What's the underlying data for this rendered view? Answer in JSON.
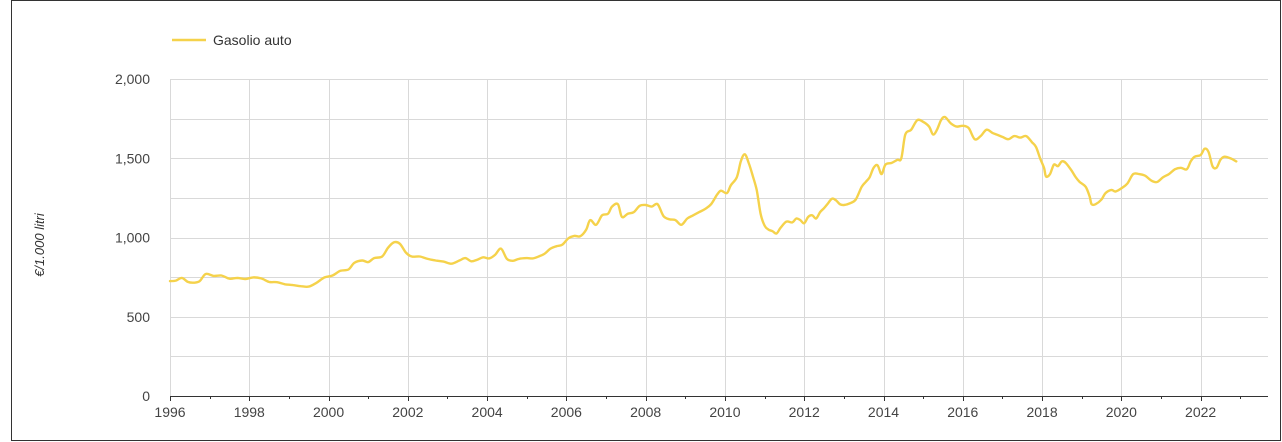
{
  "chart_data": {
    "type": "line",
    "title": "",
    "xlabel": "",
    "ylabel": "€/1.000 litri",
    "xlim": [
      1996,
      2023.7
    ],
    "ylim": [
      0,
      2000
    ],
    "y_ticks": [
      0,
      500,
      1000,
      1500,
      2000
    ],
    "y_tick_labels": [
      "0",
      "500",
      "1,000",
      "1,500",
      "2,000"
    ],
    "x_ticks": [
      1996,
      1998,
      2000,
      2002,
      2004,
      2006,
      2008,
      2010,
      2012,
      2014,
      2016,
      2018,
      2020,
      2022
    ],
    "x_tick_labels": [
      "1996",
      "1998",
      "2000",
      "2002",
      "2004",
      "2006",
      "2008",
      "2010",
      "2012",
      "2014",
      "2016",
      "2018",
      "2020",
      "2022"
    ],
    "grid": true,
    "legend_position": "top-left",
    "series": [
      {
        "name": "Gasolio auto",
        "color": "#f5d24b",
        "points": [
          [
            1996.0,
            725
          ],
          [
            1996.15,
            728
          ],
          [
            1996.3,
            745
          ],
          [
            1996.45,
            720
          ],
          [
            1996.6,
            715
          ],
          [
            1996.75,
            725
          ],
          [
            1996.9,
            770
          ],
          [
            1997.1,
            758
          ],
          [
            1997.3,
            760
          ],
          [
            1997.5,
            740
          ],
          [
            1997.7,
            745
          ],
          [
            1997.9,
            738
          ],
          [
            1998.1,
            748
          ],
          [
            1998.3,
            742
          ],
          [
            1998.5,
            720
          ],
          [
            1998.7,
            718
          ],
          [
            1998.9,
            705
          ],
          [
            1999.1,
            700
          ],
          [
            1999.3,
            693
          ],
          [
            1999.5,
            690
          ],
          [
            1999.7,
            715
          ],
          [
            1999.9,
            748
          ],
          [
            2000.1,
            760
          ],
          [
            2000.3,
            790
          ],
          [
            2000.5,
            798
          ],
          [
            2000.65,
            840
          ],
          [
            2000.85,
            855
          ],
          [
            2001.0,
            845
          ],
          [
            2001.15,
            870
          ],
          [
            2001.35,
            880
          ],
          [
            2001.5,
            935
          ],
          [
            2001.65,
            970
          ],
          [
            2001.8,
            960
          ],
          [
            2001.95,
            905
          ],
          [
            2002.1,
            880
          ],
          [
            2002.3,
            880
          ],
          [
            2002.5,
            865
          ],
          [
            2002.7,
            855
          ],
          [
            2002.9,
            848
          ],
          [
            2003.1,
            835
          ],
          [
            2003.3,
            855
          ],
          [
            2003.45,
            870
          ],
          [
            2003.6,
            850
          ],
          [
            2003.75,
            860
          ],
          [
            2003.9,
            875
          ],
          [
            2004.05,
            868
          ],
          [
            2004.2,
            890
          ],
          [
            2004.35,
            930
          ],
          [
            2004.5,
            865
          ],
          [
            2004.65,
            853
          ],
          [
            2004.8,
            865
          ],
          [
            2005.0,
            870
          ],
          [
            2005.15,
            868
          ],
          [
            2005.3,
            880
          ],
          [
            2005.45,
            898
          ],
          [
            2005.6,
            930
          ],
          [
            2005.75,
            945
          ],
          [
            2005.9,
            955
          ],
          [
            2006.05,
            995
          ],
          [
            2006.2,
            1010
          ],
          [
            2006.35,
            1008
          ],
          [
            2006.5,
            1050
          ],
          [
            2006.6,
            1110
          ],
          [
            2006.75,
            1080
          ],
          [
            2006.9,
            1140
          ],
          [
            2007.05,
            1150
          ],
          [
            2007.15,
            1195
          ],
          [
            2007.3,
            1210
          ],
          [
            2007.4,
            1130
          ],
          [
            2007.55,
            1150
          ],
          [
            2007.7,
            1160
          ],
          [
            2007.85,
            1200
          ],
          [
            2008.0,
            1205
          ],
          [
            2008.15,
            1195
          ],
          [
            2008.3,
            1210
          ],
          [
            2008.45,
            1135
          ],
          [
            2008.6,
            1115
          ],
          [
            2008.75,
            1110
          ],
          [
            2008.9,
            1080
          ],
          [
            2009.05,
            1120
          ],
          [
            2009.2,
            1140
          ],
          [
            2009.35,
            1160
          ],
          [
            2009.5,
            1180
          ],
          [
            2009.65,
            1210
          ],
          [
            2009.8,
            1270
          ],
          [
            2009.9,
            1295
          ],
          [
            2010.05,
            1280
          ],
          [
            2010.15,
            1330
          ],
          [
            2010.3,
            1380
          ],
          [
            2010.4,
            1480
          ],
          [
            2010.5,
            1525
          ],
          [
            2010.6,
            1470
          ],
          [
            2010.7,
            1390
          ],
          [
            2010.8,
            1300
          ],
          [
            2010.9,
            1150
          ],
          [
            2011.0,
            1075
          ],
          [
            2011.1,
            1050
          ],
          [
            2011.2,
            1040
          ],
          [
            2011.3,
            1025
          ],
          [
            2011.4,
            1060
          ],
          [
            2011.55,
            1100
          ],
          [
            2011.7,
            1095
          ],
          [
            2011.8,
            1120
          ],
          [
            2011.9,
            1110
          ],
          [
            2012.0,
            1090
          ],
          [
            2012.1,
            1130
          ],
          [
            2012.2,
            1140
          ],
          [
            2012.3,
            1120
          ],
          [
            2012.4,
            1160
          ],
          [
            2012.5,
            1185
          ],
          [
            2012.6,
            1215
          ],
          [
            2012.7,
            1245
          ],
          [
            2012.8,
            1235
          ],
          [
            2012.9,
            1210
          ],
          [
            2013.0,
            1205
          ],
          [
            2013.15,
            1215
          ],
          [
            2013.3,
            1240
          ],
          [
            2013.45,
            1320
          ],
          [
            2013.55,
            1350
          ],
          [
            2013.65,
            1380
          ],
          [
            2013.75,
            1440
          ],
          [
            2013.85,
            1455
          ],
          [
            2013.95,
            1400
          ],
          [
            2014.05,
            1460
          ],
          [
            2014.2,
            1470
          ],
          [
            2014.35,
            1490
          ],
          [
            2014.45,
            1500
          ],
          [
            2014.55,
            1650
          ],
          [
            2014.7,
            1680
          ],
          [
            2014.85,
            1740
          ],
          [
            2015.0,
            1730
          ],
          [
            2015.15,
            1700
          ],
          [
            2015.25,
            1650
          ],
          [
            2015.35,
            1680
          ],
          [
            2015.45,
            1740
          ],
          [
            2015.55,
            1760
          ],
          [
            2015.7,
            1720
          ],
          [
            2015.85,
            1700
          ],
          [
            2016.0,
            1705
          ],
          [
            2016.15,
            1690
          ],
          [
            2016.3,
            1620
          ],
          [
            2016.45,
            1640
          ],
          [
            2016.6,
            1680
          ],
          [
            2016.75,
            1660
          ],
          [
            2016.85,
            1650
          ],
          [
            2017.0,
            1635
          ],
          [
            2017.15,
            1620
          ],
          [
            2017.3,
            1640
          ],
          [
            2017.45,
            1630
          ],
          [
            2017.6,
            1640
          ],
          [
            2017.75,
            1600
          ],
          [
            2017.85,
            1570
          ],
          [
            2017.95,
            1500
          ],
          [
            2018.05,
            1440
          ],
          [
            2018.1,
            1385
          ],
          [
            2018.2,
            1400
          ],
          [
            2018.3,
            1460
          ],
          [
            2018.4,
            1450
          ],
          [
            2018.5,
            1480
          ],
          [
            2018.6,
            1470
          ],
          [
            2018.75,
            1420
          ],
          [
            2018.85,
            1380
          ],
          [
            2018.95,
            1350
          ],
          [
            2019.1,
            1320
          ],
          [
            2019.2,
            1260
          ],
          [
            2019.25,
            1210
          ],
          [
            2019.35,
            1210
          ],
          [
            2019.5,
            1240
          ],
          [
            2019.6,
            1280
          ],
          [
            2019.75,
            1300
          ],
          [
            2019.85,
            1290
          ],
          [
            2020.0,
            1310
          ],
          [
            2020.15,
            1340
          ],
          [
            2020.3,
            1400
          ],
          [
            2020.45,
            1400
          ],
          [
            2020.6,
            1390
          ],
          [
            2020.75,
            1360
          ],
          [
            2020.9,
            1350
          ],
          [
            2021.05,
            1380
          ],
          [
            2021.2,
            1400
          ],
          [
            2021.35,
            1430
          ],
          [
            2021.5,
            1440
          ],
          [
            2021.65,
            1430
          ],
          [
            2021.75,
            1480
          ],
          [
            2021.85,
            1510
          ],
          [
            2022.0,
            1520
          ],
          [
            2022.1,
            1560
          ],
          [
            2022.2,
            1540
          ],
          [
            2022.3,
            1450
          ],
          [
            2022.4,
            1440
          ],
          [
            2022.5,
            1490
          ],
          [
            2022.6,
            1510
          ],
          [
            2022.75,
            1500
          ],
          [
            2022.9,
            1480
          ]
        ]
      }
    ]
  }
}
